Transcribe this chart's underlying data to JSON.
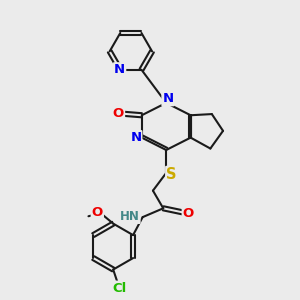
{
  "bg_color": "#ebebeb",
  "bond_color": "#1a1a1a",
  "bond_width": 1.5,
  "atom_colors": {
    "N": "#0000ee",
    "O": "#ee0000",
    "S": "#ccaa00",
    "Cl": "#22bb00",
    "H": "#448888",
    "C": "#1a1a1a"
  },
  "font_size": 8.5,
  "fig_size": [
    3.0,
    3.0
  ],
  "dpi": 100
}
